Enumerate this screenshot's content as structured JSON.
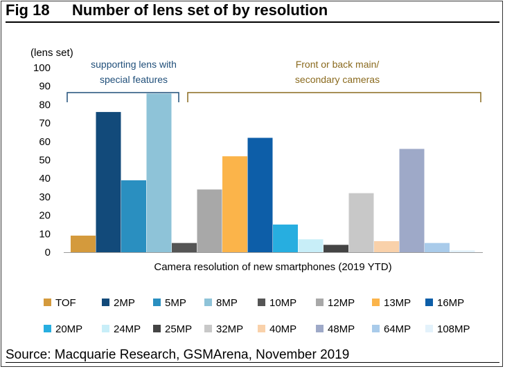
{
  "header": {
    "fig_label": "Fig 18",
    "title": "Number of lens set of by resolution"
  },
  "source": "Source: Macquarie Research, GSMArena, November 2019",
  "colors": {
    "TOF": "#d49a3c",
    "2MP": "#124a7a",
    "5MP": "#2a8fc0",
    "8MP": "#8ec3d8",
    "10MP": "#555555",
    "12MP": "#a8a8a8",
    "13MP": "#fbb44a",
    "16MP": "#0d5ea8",
    "20MP": "#27aee0",
    "24MP": "#c8eef8",
    "25MP": "#444444",
    "32MP": "#c8c8c8",
    "40MP": "#f9d1aa",
    "48MP": "#9ea9c8",
    "64MP": "#a9cbea",
    "108MP": "#e3f2fb",
    "bracket_left": "#1f4e79",
    "bracket_right": "#8a6a1e"
  },
  "chart_data": {
    "type": "bar",
    "title": "Number of lens set of by resolution",
    "ylabel": "(lens set)",
    "xlabel": "Camera resolution of new smartphones (2019 YTD)",
    "ylim": [
      0,
      100
    ],
    "yticks": [
      0,
      10,
      20,
      30,
      40,
      50,
      60,
      70,
      80,
      90,
      100
    ],
    "grid": false,
    "legend_position": "bottom",
    "series": [
      {
        "name": "TOF",
        "value": 9
      },
      {
        "name": "2MP",
        "value": 76
      },
      {
        "name": "5MP",
        "value": 39
      },
      {
        "name": "8MP",
        "value": 86
      },
      {
        "name": "10MP",
        "value": 5
      },
      {
        "name": "12MP",
        "value": 34
      },
      {
        "name": "13MP",
        "value": 52
      },
      {
        "name": "16MP",
        "value": 62
      },
      {
        "name": "20MP",
        "value": 15
      },
      {
        "name": "24MP",
        "value": 7
      },
      {
        "name": "25MP",
        "value": 4
      },
      {
        "name": "32MP",
        "value": 32
      },
      {
        "name": "40MP",
        "value": 6
      },
      {
        "name": "48MP",
        "value": 56
      },
      {
        "name": "64MP",
        "value": 5
      },
      {
        "name": "108MP",
        "value": 1
      }
    ],
    "annotations": [
      {
        "text_line1": "supporting  lens with",
        "text_line2": "special features"
      },
      {
        "text_line1": "Front or back main/",
        "text_line2": "secondary cameras"
      }
    ]
  }
}
